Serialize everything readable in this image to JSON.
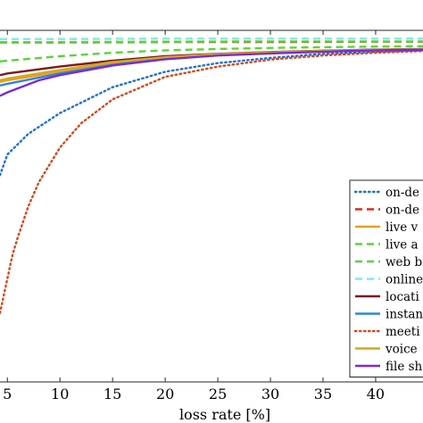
{
  "chart_data": {
    "type": "line",
    "xlabel": "loss rate [%]",
    "ylabel": "",
    "title": "",
    "xlim": [
      4.3,
      44.5
    ],
    "ylim": [
      0,
      1.02
    ],
    "grid": false,
    "legend_position": "bottom-right",
    "x_ticks": [
      "5",
      "10",
      "15",
      "20",
      "25",
      "30",
      "35",
      "40"
    ],
    "x_tick_values": [
      5,
      10,
      15,
      20,
      25,
      30,
      35,
      40
    ],
    "series": [
      {
        "name": "on-de",
        "color": "#1f6fd0",
        "dash": "dotted",
        "x": [
          4.3,
          5,
          7,
          10,
          15,
          20,
          25,
          30,
          35,
          40,
          44.5
        ],
        "y": [
          0.6,
          0.66,
          0.72,
          0.78,
          0.855,
          0.9,
          0.925,
          0.94,
          0.952,
          0.958,
          0.962
        ]
      },
      {
        "name": "on-de",
        "color": "#d62a1e",
        "dash": "dashed",
        "x": [
          4.3,
          10,
          20,
          30,
          40,
          44.5
        ],
        "y": [
          0.985,
          0.985,
          0.986,
          0.986,
          0.987,
          0.987
        ]
      },
      {
        "name": "live v",
        "color": "#e6a020",
        "dash": "solid",
        "x": [
          4.3,
          5,
          10,
          15,
          20,
          25,
          30,
          35,
          40,
          44.5
        ],
        "y": [
          0.87,
          0.875,
          0.9,
          0.925,
          0.94,
          0.95,
          0.955,
          0.96,
          0.963,
          0.965
        ]
      },
      {
        "name": "live a",
        "color": "#5ad43a",
        "dash": "dashed",
        "x": [
          4.3,
          5,
          10,
          15,
          20,
          25,
          30,
          35,
          40,
          44.5
        ],
        "y": [
          0.93,
          0.932,
          0.945,
          0.955,
          0.962,
          0.966,
          0.969,
          0.971,
          0.973,
          0.974
        ]
      },
      {
        "name": "web b",
        "color": "#5ad43a",
        "dash": "dashed",
        "x": [
          4.3,
          10,
          20,
          30,
          40,
          44.5
        ],
        "y": [
          0.985,
          0.986,
          0.987,
          0.988,
          0.988,
          0.988
        ]
      },
      {
        "name": "online",
        "color": "#7fe8e8",
        "dash": "dashed",
        "x": [
          4.3,
          10,
          20,
          30,
          40,
          44.5
        ],
        "y": [
          0.995,
          0.995,
          0.996,
          0.996,
          0.996,
          0.996
        ]
      },
      {
        "name": "locati",
        "color": "#7a1a1a",
        "dash": "solid",
        "x": [
          4.3,
          5,
          10,
          15,
          20,
          25,
          30,
          35,
          40,
          44.5
        ],
        "y": [
          0.89,
          0.895,
          0.915,
          0.932,
          0.945,
          0.952,
          0.957,
          0.961,
          0.964,
          0.966
        ]
      },
      {
        "name": "instan",
        "color": "#2f86d6",
        "dash": "solid",
        "x": [
          4.3,
          5,
          10,
          15,
          20,
          25,
          30,
          35,
          40,
          44.5
        ],
        "y": [
          0.86,
          0.865,
          0.895,
          0.92,
          0.937,
          0.948,
          0.955,
          0.96,
          0.963,
          0.965
        ]
      },
      {
        "name": "meeti",
        "color": "#d4491c",
        "dash": "dotted",
        "x": [
          4.3,
          5,
          5.5,
          6,
          7,
          8,
          10,
          12,
          15,
          20,
          25,
          30,
          35,
          40,
          44.5
        ],
        "y": [
          0.2,
          0.3,
          0.37,
          0.42,
          0.51,
          0.58,
          0.68,
          0.75,
          0.82,
          0.885,
          0.915,
          0.935,
          0.947,
          0.955,
          0.96
        ]
      },
      {
        "name": "voice",
        "color": "#d4a81e",
        "dash": "solid",
        "x": [
          4.3,
          5,
          10,
          15,
          20,
          25,
          30,
          35,
          40,
          44.5
        ],
        "y": [
          0.875,
          0.88,
          0.905,
          0.928,
          0.942,
          0.951,
          0.956,
          0.96,
          0.963,
          0.965
        ]
      },
      {
        "name": "file sh",
        "color": "#7a2ad8",
        "dash": "solid",
        "x": [
          4.3,
          5,
          8,
          10,
          15,
          20,
          25,
          30,
          35,
          40,
          44.5
        ],
        "y": [
          0.83,
          0.84,
          0.875,
          0.89,
          0.918,
          0.936,
          0.947,
          0.953,
          0.958,
          0.962,
          0.964
        ]
      }
    ]
  }
}
